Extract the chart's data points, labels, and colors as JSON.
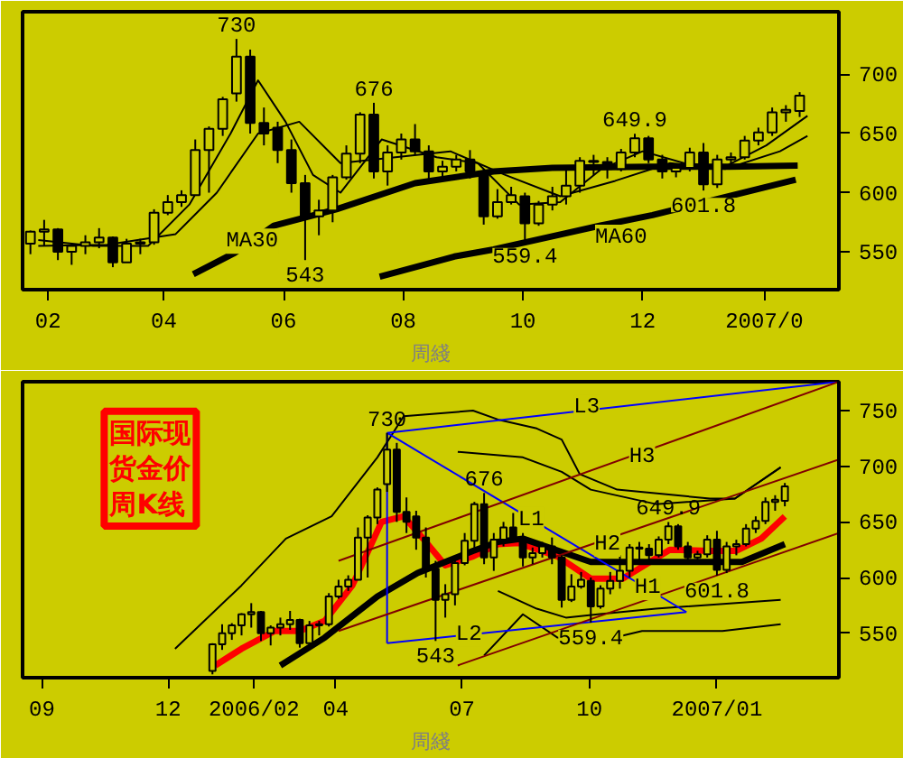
{
  "chart_data": [
    {
      "type": "candlestick",
      "xlabel": "周綫",
      "x": [
        "2006-01-23",
        "2006-01-30",
        "2006-02-06",
        "2006-02-13",
        "2006-02-20",
        "2006-02-27",
        "2006-03-06",
        "2006-03-13",
        "2006-03-20",
        "2006-03-27",
        "2006-04-03",
        "2006-04-10",
        "2006-04-17",
        "2006-04-24",
        "2006-05-01",
        "2006-05-08",
        "2006-05-15",
        "2006-05-22",
        "2006-05-29",
        "2006-06-05",
        "2006-06-12",
        "2006-06-19",
        "2006-06-26",
        "2006-07-03",
        "2006-07-10",
        "2006-07-17",
        "2006-07-24",
        "2006-07-31",
        "2006-08-07",
        "2006-08-14",
        "2006-08-21",
        "2006-08-28",
        "2006-09-04",
        "2006-09-11",
        "2006-09-18",
        "2006-09-25",
        "2006-10-02",
        "2006-10-09",
        "2006-10-16",
        "2006-10-23",
        "2006-10-30",
        "2006-11-06",
        "2006-11-13",
        "2006-11-20",
        "2006-11-27",
        "2006-12-04",
        "2006-12-11",
        "2006-12-18",
        "2006-12-25",
        "2007-01-01",
        "2007-01-08",
        "2007-01-15",
        "2007-01-22",
        "2007-01-29",
        "2007-02-05",
        "2007-02-12",
        "2007-02-19"
      ],
      "ohlc": [
        [
          557,
          568,
          548,
          567
        ],
        [
          567,
          577,
          555,
          569
        ],
        [
          569,
          570,
          543,
          550
        ],
        [
          550,
          557,
          539,
          555
        ],
        [
          555,
          564,
          548,
          558
        ],
        [
          558,
          570,
          553,
          562
        ],
        [
          562,
          563,
          537,
          541
        ],
        [
          541,
          561,
          541,
          557
        ],
        [
          557,
          561,
          548,
          558
        ],
        [
          558,
          586,
          556,
          583
        ],
        [
          583,
          598,
          581,
          592
        ],
        [
          592,
          602,
          588,
          598
        ],
        [
          598,
          645,
          598,
          636
        ],
        [
          636,
          656,
          600,
          654
        ],
        [
          654,
          681,
          648,
          679
        ],
        [
          684,
          730,
          677,
          715
        ],
        [
          715,
          721,
          650,
          659
        ],
        [
          659,
          672,
          640,
          650
        ],
        [
          655,
          660,
          625,
          636
        ],
        [
          636,
          645,
          600,
          608
        ],
        [
          608,
          615,
          543,
          580
        ],
        [
          580,
          594,
          564,
          585
        ],
        [
          585,
          615,
          575,
          613
        ],
        [
          613,
          640,
          611,
          633
        ],
        [
          633,
          668,
          625,
          666
        ],
        [
          666,
          676,
          612,
          618
        ],
        [
          618,
          640,
          606,
          634
        ],
        [
          634,
          650,
          628,
          645
        ],
        [
          645,
          658,
          632,
          635
        ],
        [
          635,
          640,
          610,
          618
        ],
        [
          618,
          627,
          612,
          622
        ],
        [
          622,
          632,
          618,
          628
        ],
        [
          628,
          636,
          612,
          618
        ],
        [
          618,
          620,
          573,
          580
        ],
        [
          580,
          603,
          578,
          592
        ],
        [
          592,
          605,
          590,
          598
        ],
        [
          597,
          600,
          559.4,
          574
        ],
        [
          574,
          593,
          572,
          590
        ],
        [
          590,
          605,
          585,
          597
        ],
        [
          597,
          620,
          590,
          606
        ],
        [
          606,
          630,
          600,
          627
        ],
        [
          627,
          632,
          615,
          626
        ],
        [
          626,
          630,
          612,
          620
        ],
        [
          620,
          637,
          618,
          634
        ],
        [
          634,
          649.9,
          630,
          646
        ],
        [
          646,
          648,
          625,
          628
        ],
        [
          628,
          632,
          612,
          618
        ],
        [
          618,
          624,
          613,
          621
        ],
        [
          621,
          638,
          618,
          634
        ],
        [
          634,
          642,
          601.8,
          607
        ],
        [
          607,
          632,
          604,
          628
        ],
        [
          628,
          634,
          620,
          630
        ],
        [
          630,
          648,
          628,
          644
        ],
        [
          644,
          655,
          640,
          651
        ],
        [
          651,
          672,
          648,
          668
        ],
        [
          668,
          674,
          660,
          670
        ],
        [
          669,
          685,
          664,
          682
        ]
      ],
      "xlim": [
        "2006-01-19",
        "2007-03-11"
      ],
      "ylim": [
        518,
        753
      ],
      "xticks": [
        {
          "value": "2006-02-01",
          "label": "02"
        },
        {
          "value": "2006-04-01",
          "label": "04"
        },
        {
          "value": "2006-06-01",
          "label": "06"
        },
        {
          "value": "2006-08-01",
          "label": "08"
        },
        {
          "value": "2006-10-01",
          "label": "10"
        },
        {
          "value": "2006-12-01",
          "label": "12"
        },
        {
          "value": "2007-02-01",
          "label": "2007/0"
        }
      ],
      "yticks": [
        550,
        600,
        650,
        700
      ],
      "series": [
        {
          "type": "line",
          "color": "#000000",
          "x": [
            "2006-01-27",
            "2006-02-24",
            "2006-03-24",
            "2006-04-14",
            "2006-05-05",
            "2006-05-19",
            "2006-06-02",
            "2006-06-16",
            "2006-06-30",
            "2006-07-21",
            "2006-08-18",
            "2006-09-08",
            "2006-09-29",
            "2006-10-20",
            "2006-11-10",
            "2006-12-01",
            "2006-12-22",
            "2007-01-12",
            "2007-02-02",
            "2007-02-23"
          ],
          "values": [
            560,
            555,
            555,
            590,
            650,
            695,
            660,
            615,
            600,
            645,
            630,
            625,
            590,
            592,
            620,
            635,
            625,
            622,
            640,
            665
          ]
        },
        {
          "type": "line",
          "color": "#000000",
          "x": [
            "2006-01-27",
            "2006-03-03",
            "2006-04-07",
            "2006-04-28",
            "2006-05-19",
            "2006-06-09",
            "2006-06-30",
            "2006-07-28",
            "2006-08-25",
            "2006-09-22",
            "2006-10-20",
            "2006-11-17",
            "2006-12-15",
            "2007-01-12",
            "2007-02-09",
            "2007-02-23"
          ],
          "values": [
            555,
            556,
            565,
            600,
            650,
            660,
            625,
            630,
            635,
            615,
            597,
            610,
            625,
            620,
            635,
            648
          ]
        },
        {
          "type": "line",
          "color": "#000000",
          "x": [
            "2006-04-16",
            "2006-05-07",
            "2006-05-27",
            "2006-06-28",
            "2006-08-07",
            "2006-09-16",
            "2006-10-16",
            "2006-12-05",
            "2007-01-14",
            "2007-02-18"
          ],
          "values": [
            531,
            549,
            572,
            586,
            608,
            618,
            621,
            622,
            622,
            623
          ]
        },
        {
          "type": "line",
          "color": "#000000",
          "x": [
            "2006-07-20",
            "2006-08-27",
            "2006-09-16",
            "2006-11-09",
            "2006-12-06",
            "2007-02-17"
          ],
          "values": [
            529,
            546,
            552,
            572,
            581,
            611
          ]
        }
      ],
      "annotations": [
        {
          "text": "730",
          "x": "2006-05-08",
          "y": 730
        },
        {
          "text": "676",
          "x": "2006-07-17",
          "y": 676
        },
        {
          "text": "543",
          "x": "2006-06-12",
          "y": 543
        },
        {
          "text": "559.4",
          "x": "2006-10-02",
          "y": 559.4
        },
        {
          "text": "649.9",
          "x": "2006-11-27",
          "y": 649.9
        },
        {
          "text": "601.8",
          "x": "2007-01-01",
          "y": 601.8
        },
        {
          "text": "MA30",
          "x": "2006-05-16",
          "y": 559
        },
        {
          "text": "MA60",
          "x": "2006-11-20",
          "y": 579
        }
      ]
    },
    {
      "type": "candlestick",
      "title": "国际现货金价周K线",
      "xlabel": "周綫",
      "x": [
        "2006-01-02",
        "2006-01-09",
        "2006-01-16",
        "2006-01-23",
        "2006-01-30",
        "2006-02-06",
        "2006-02-13",
        "2006-02-20",
        "2006-02-27",
        "2006-03-06",
        "2006-03-13",
        "2006-03-20",
        "2006-03-27",
        "2006-04-03",
        "2006-04-10",
        "2006-04-17",
        "2006-04-24",
        "2006-05-01",
        "2006-05-08",
        "2006-05-15",
        "2006-05-22",
        "2006-05-29",
        "2006-06-05",
        "2006-06-12",
        "2006-06-19",
        "2006-06-26",
        "2006-07-03",
        "2006-07-10",
        "2006-07-17",
        "2006-07-24",
        "2006-07-31",
        "2006-08-07",
        "2006-08-14",
        "2006-08-21",
        "2006-08-28",
        "2006-09-04",
        "2006-09-11",
        "2006-09-18",
        "2006-09-25",
        "2006-10-02",
        "2006-10-09",
        "2006-10-16",
        "2006-10-23",
        "2006-10-30",
        "2006-11-06",
        "2006-11-13",
        "2006-11-20",
        "2006-11-27",
        "2006-12-04",
        "2006-12-11",
        "2006-12-18",
        "2006-12-25",
        "2007-01-01",
        "2007-01-08",
        "2007-01-15",
        "2007-01-22",
        "2007-01-29",
        "2007-02-05",
        "2007-02-12",
        "2007-02-19"
      ],
      "ohlc": [
        [
          516,
          541,
          513,
          540
        ],
        [
          540,
          558,
          535,
          550
        ],
        [
          550,
          559,
          544,
          557
        ],
        [
          557,
          568,
          548,
          567
        ],
        [
          567,
          577,
          555,
          569
        ],
        [
          569,
          570,
          543,
          550
        ],
        [
          550,
          557,
          539,
          555
        ],
        [
          555,
          564,
          548,
          558
        ],
        [
          558,
          570,
          553,
          562
        ],
        [
          562,
          563,
          537,
          541
        ],
        [
          541,
          561,
          541,
          557
        ],
        [
          557,
          561,
          548,
          558
        ],
        [
          558,
          586,
          556,
          583
        ],
        [
          583,
          598,
          581,
          592
        ],
        [
          592,
          602,
          588,
          598
        ],
        [
          598,
          645,
          598,
          636
        ],
        [
          636,
          656,
          600,
          654
        ],
        [
          654,
          681,
          648,
          679
        ],
        [
          684,
          730,
          677,
          715
        ],
        [
          715,
          721,
          650,
          659
        ],
        [
          659,
          672,
          640,
          650
        ],
        [
          655,
          660,
          625,
          636
        ],
        [
          636,
          645,
          600,
          608
        ],
        [
          608,
          615,
          543,
          580
        ],
        [
          580,
          594,
          564,
          585
        ],
        [
          585,
          615,
          575,
          613
        ],
        [
          613,
          640,
          611,
          633
        ],
        [
          633,
          668,
          625,
          666
        ],
        [
          666,
          676,
          612,
          618
        ],
        [
          618,
          640,
          606,
          634
        ],
        [
          634,
          650,
          628,
          645
        ],
        [
          645,
          658,
          632,
          635
        ],
        [
          635,
          640,
          610,
          618
        ],
        [
          618,
          627,
          612,
          622
        ],
        [
          622,
          632,
          618,
          628
        ],
        [
          628,
          636,
          612,
          618
        ],
        [
          618,
          620,
          573,
          580
        ],
        [
          580,
          603,
          578,
          592
        ],
        [
          592,
          605,
          590,
          598
        ],
        [
          597,
          600,
          559.4,
          574
        ],
        [
          574,
          593,
          572,
          590
        ],
        [
          590,
          605,
          585,
          597
        ],
        [
          597,
          620,
          590,
          606
        ],
        [
          606,
          630,
          600,
          627
        ],
        [
          627,
          632,
          615,
          626
        ],
        [
          626,
          630,
          612,
          620
        ],
        [
          620,
          637,
          618,
          634
        ],
        [
          634,
          649.9,
          630,
          646
        ],
        [
          646,
          648,
          625,
          628
        ],
        [
          628,
          632,
          612,
          618
        ],
        [
          618,
          624,
          613,
          621
        ],
        [
          621,
          638,
          618,
          634
        ],
        [
          634,
          642,
          601.8,
          607
        ],
        [
          607,
          632,
          604,
          628
        ],
        [
          628,
          634,
          620,
          630
        ],
        [
          630,
          648,
          628,
          644
        ],
        [
          644,
          655,
          640,
          651
        ],
        [
          651,
          672,
          648,
          668
        ],
        [
          668,
          674,
          660,
          670
        ],
        [
          669,
          685,
          664,
          682
        ]
      ],
      "xlim": [
        "2005-08-18",
        "2007-03-30"
      ],
      "ylim": [
        510,
        776
      ],
      "xticks": [
        {
          "value": "2005-09-01",
          "label": "09"
        },
        {
          "value": "2005-12-01",
          "label": "12"
        },
        {
          "value": "2006-02-01",
          "label": "2006/02"
        },
        {
          "value": "2006-04-01",
          "label": "04"
        },
        {
          "value": "2006-07-01",
          "label": "07"
        },
        {
          "value": "2006-10-01",
          "label": "10"
        },
        {
          "value": "2007-01-01",
          "label": "2007/01"
        }
      ],
      "yticks": [
        550,
        600,
        650,
        700,
        750
      ],
      "series": [
        {
          "type": "line",
          "color": "#ff0000",
          "x": [
            "2006-01-04",
            "2006-01-23",
            "2006-02-16",
            "2006-03-06",
            "2006-03-24",
            "2006-04-13",
            "2006-05-04",
            "2006-05-20",
            "2006-06-03",
            "2006-06-19",
            "2006-07-09",
            "2006-07-27",
            "2006-08-11",
            "2006-09-08",
            "2006-10-02",
            "2006-10-25",
            "2006-11-28",
            "2006-12-27",
            "2007-01-15",
            "2007-02-02",
            "2007-02-19"
          ],
          "values": [
            521,
            536,
            552,
            552,
            561,
            593,
            650,
            655,
            635,
            611,
            619,
            630,
            631,
            619,
            599,
            599,
            625,
            624,
            624,
            635,
            655
          ]
        },
        {
          "type": "line",
          "color": "#000000",
          "x": [
            "2006-02-20",
            "2006-03-24",
            "2006-05-01",
            "2006-05-30",
            "2006-07-09",
            "2006-07-27",
            "2006-08-14",
            "2006-10-02",
            "2006-11-18",
            "2007-01-19",
            "2007-02-19"
          ],
          "values": [
            521,
            546,
            583,
            604,
            624,
            632,
            635,
            614,
            614,
            614,
            630
          ]
        },
        {
          "type": "line",
          "color": "#000000",
          "x": [
            "2005-12-06",
            "2006-01-23",
            "2006-02-24",
            "2006-03-29",
            "2006-05-01",
            "2006-05-20",
            "2006-07-09",
            "2006-07-27",
            "2006-08-24",
            "2006-09-11",
            "2006-09-24",
            "2006-10-21",
            "2006-12-27",
            "2007-01-14",
            "2007-02-16"
          ],
          "values": [
            536,
            593,
            635,
            655,
            708,
            745,
            750,
            742,
            734,
            724,
            693,
            679,
            671,
            671,
            699
          ]
        },
        {
          "type": "line",
          "color": "#000000",
          "x": [
            "2006-06-28",
            "2006-08-14",
            "2006-09-11",
            "2006-10-02",
            "2006-11-18",
            "2007-01-14",
            "2007-02-16"
          ],
          "values": [
            713,
            708,
            695,
            679,
            666,
            671,
            699
          ]
        },
        {
          "type": "line",
          "color": "#000000",
          "x": [
            "2006-07-27",
            "2006-08-24",
            "2006-09-14",
            "2006-10-07",
            "2006-11-18",
            "2007-02-16"
          ],
          "values": [
            588,
            572,
            564,
            567,
            572,
            580
          ]
        },
        {
          "type": "line",
          "color": "#000000",
          "x": [
            "2006-07-17",
            "2006-08-14",
            "2006-09-08",
            "2006-10-02",
            "2006-11-08",
            "2007-01-05",
            "2007-02-16"
          ],
          "values": [
            530,
            567,
            546,
            541,
            552,
            552,
            558
          ]
        },
        {
          "type": "line",
          "color": "#0000ff",
          "x": [
            "2006-05-08",
            "2006-12-10"
          ],
          "values": [
            730,
            569
          ]
        },
        {
          "type": "line",
          "color": "#0000ff",
          "x": [
            "2006-05-08",
            "2006-12-10"
          ],
          "values": [
            541,
            569
          ]
        },
        {
          "type": "line",
          "color": "#0000ff",
          "x": [
            "2006-05-08",
            "2007-03-30"
          ],
          "values": [
            730,
            776
          ]
        },
        {
          "type": "line",
          "color": "#0000ff",
          "x": [
            "2006-05-08",
            "2006-05-08"
          ],
          "values": [
            730,
            541
          ]
        },
        {
          "type": "line",
          "color": "#800000",
          "x": [
            "2006-06-28",
            "2007-03-30"
          ],
          "values": [
            521,
            640
          ]
        },
        {
          "type": "line",
          "color": "#800000",
          "x": [
            "2006-04-03",
            "2007-03-30"
          ],
          "values": [
            552,
            706
          ]
        },
        {
          "type": "line",
          "color": "#800000",
          "x": [
            "2006-04-03",
            "2007-03-30"
          ],
          "values": [
            615,
            776
          ]
        }
      ],
      "annotations": [
        {
          "text": "730",
          "x": "2006-05-08",
          "y": 730
        },
        {
          "text": "676",
          "x": "2006-07-17",
          "y": 676
        },
        {
          "text": "543",
          "x": "2006-06-12",
          "y": 543
        },
        {
          "text": "559.4",
          "x": "2006-10-02",
          "y": 559.4
        },
        {
          "text": "649.9",
          "x": "2006-11-27",
          "y": 649.9
        },
        {
          "text": "601.8",
          "x": "2007-01-01",
          "y": 601.8
        },
        {
          "text": "L1",
          "x": "2006-08-20",
          "y": 652
        },
        {
          "text": "L2",
          "x": "2006-07-06",
          "y": 549
        },
        {
          "text": "L3",
          "x": "2006-09-29",
          "y": 753
        },
        {
          "text": "H1",
          "x": "2006-11-12",
          "y": 591
        },
        {
          "text": "H2",
          "x": "2006-10-14",
          "y": 630
        },
        {
          "text": "H3",
          "x": "2006-11-08",
          "y": 709
        }
      ]
    }
  ]
}
